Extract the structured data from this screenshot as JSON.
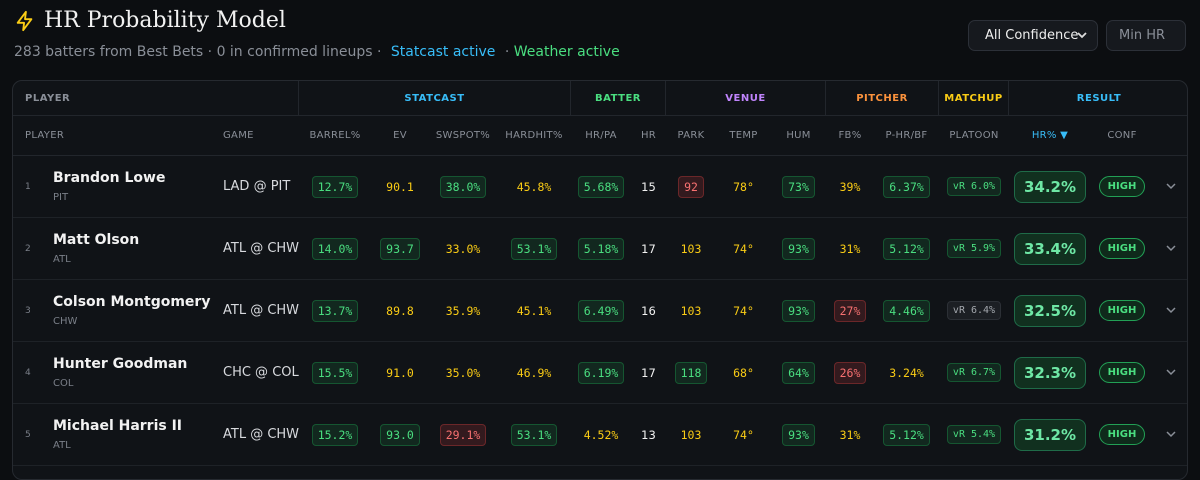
{
  "header": {
    "title": "HR Probability Model",
    "subtitle": "283 batters from Best Bets · 0 in confirmed lineups ·",
    "statcast_status": "Statcast active",
    "separator": "·",
    "weather_status": "Weather active"
  },
  "controls": {
    "confidence": "All Confidence",
    "min_hr_placeholder": "Min HR"
  },
  "table": {
    "groups": [
      {
        "label": "PLAYER",
        "color": "#8a8f98"
      },
      {
        "label": "STATCAST",
        "color": "#38bdf8"
      },
      {
        "label": "BATTER",
        "color": "#4ade80"
      },
      {
        "label": "VENUE",
        "color": "#c084fc"
      },
      {
        "label": "PITCHER",
        "color": "#fb923c"
      },
      {
        "label": "MATCHUP",
        "color": "#facc15"
      },
      {
        "label": "RESULT",
        "color": "#38bdf8"
      }
    ],
    "columns": [
      "PLAYER",
      "GAME",
      "BARREL%",
      "EV",
      "SWSPOT%",
      "HARDHIT%",
      "HR/PA",
      "HR",
      "PARK",
      "TEMP",
      "HUM",
      "FB%",
      "P-HR/BF",
      "PLATOON",
      "HR% ▼",
      "CONF"
    ],
    "rows": [
      {
        "rank": 1,
        "name": "Brandon Lowe",
        "team": "PIT",
        "game": "LAD @ PIT",
        "cells": [
          "12.7%",
          "90.1",
          "38.0%",
          "45.8%",
          "5.68%",
          "15",
          "92",
          "78°",
          "73%",
          "39%",
          "6.37%",
          "vR 6.0%",
          "34.2%",
          "HIGH"
        ],
        "styles": [
          "g",
          "y",
          "g",
          "y",
          "g",
          "w",
          "r",
          "y",
          "g",
          "y",
          "g",
          "g",
          "big",
          "pill"
        ]
      },
      {
        "rank": 2,
        "name": "Matt Olson",
        "team": "ATL",
        "game": "ATL @ CHW",
        "cells": [
          "14.0%",
          "93.7",
          "33.0%",
          "53.1%",
          "5.18%",
          "17",
          "103",
          "74°",
          "93%",
          "31%",
          "5.12%",
          "vR 5.9%",
          "33.4%",
          "HIGH"
        ],
        "styles": [
          "g",
          "g",
          "y",
          "g",
          "g",
          "w",
          "y",
          "y",
          "g",
          "y",
          "g",
          "g",
          "big",
          "pill"
        ]
      },
      {
        "rank": 3,
        "name": "Colson Montgomery",
        "team": "CHW",
        "game": "ATL @ CHW",
        "cells": [
          "13.7%",
          "89.8",
          "35.9%",
          "45.1%",
          "6.49%",
          "16",
          "103",
          "74°",
          "93%",
          "27%",
          "4.46%",
          "vR 6.4%",
          "32.5%",
          "HIGH"
        ],
        "styles": [
          "g",
          "y",
          "y",
          "y",
          "g",
          "w",
          "y",
          "y",
          "g",
          "r",
          "g",
          "n",
          "big",
          "pill"
        ]
      },
      {
        "rank": 4,
        "name": "Hunter Goodman",
        "team": "COL",
        "game": "CHC @ COL",
        "cells": [
          "15.5%",
          "91.0",
          "35.0%",
          "46.9%",
          "6.19%",
          "17",
          "118",
          "68°",
          "64%",
          "26%",
          "3.24%",
          "vR 6.7%",
          "32.3%",
          "HIGH"
        ],
        "styles": [
          "g",
          "y",
          "y",
          "y",
          "g",
          "w",
          "g",
          "y",
          "g",
          "r",
          "y",
          "g",
          "big",
          "pill"
        ]
      },
      {
        "rank": 5,
        "name": "Michael Harris II",
        "team": "ATL",
        "game": "ATL @ CHW",
        "cells": [
          "15.2%",
          "93.0",
          "29.1%",
          "53.1%",
          "4.52%",
          "13",
          "103",
          "74°",
          "93%",
          "31%",
          "5.12%",
          "vR 5.4%",
          "31.2%",
          "HIGH"
        ],
        "styles": [
          "g",
          "g",
          "r",
          "g",
          "y",
          "w",
          "y",
          "y",
          "g",
          "y",
          "g",
          "g",
          "big",
          "pill"
        ]
      }
    ]
  }
}
